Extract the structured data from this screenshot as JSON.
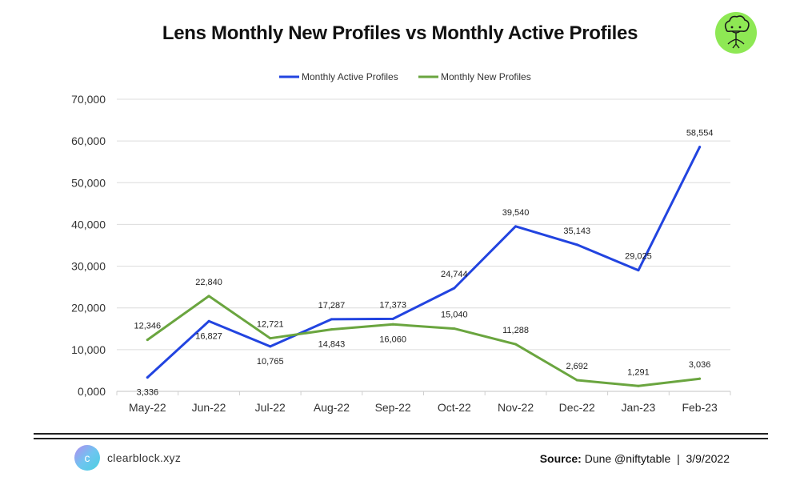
{
  "colors": {
    "active": "#2244e0",
    "new": "#6aa53f",
    "grid": "#dcdcdc",
    "logo_bg": "#8ee854"
  },
  "chart_data": {
    "type": "line",
    "title": "Lens Monthly New Profiles vs Monthly Active Profiles",
    "categories": [
      "May-22",
      "Jun-22",
      "Jul-22",
      "Aug-22",
      "Sep-22",
      "Oct-22",
      "Nov-22",
      "Dec-22",
      "Jan-23",
      "Feb-23"
    ],
    "series": [
      {
        "name": "Monthly Active Profiles",
        "color": "#2244e0",
        "values": [
          3336,
          16827,
          10765,
          17287,
          17373,
          24744,
          39540,
          35143,
          29025,
          58554
        ],
        "labels": [
          "3,336",
          "16,827",
          "10,765",
          "17,287",
          "17,373",
          "24,744",
          "39,540",
          "35,143",
          "29,025",
          "58,554"
        ]
      },
      {
        "name": "Monthly New Profiles",
        "color": "#6aa53f",
        "values": [
          12346,
          22840,
          12721,
          14843,
          16060,
          15040,
          11288,
          2692,
          1291,
          3036
        ],
        "labels": [
          "12,346",
          "22,840",
          "12,721",
          "14,843",
          "16,060",
          "15,040",
          "11,288",
          "2,692",
          "1,291",
          "3,036"
        ]
      }
    ],
    "ylim": [
      0,
      70000
    ],
    "yticks": [
      "0,000",
      "10,000",
      "20,000",
      "30,000",
      "40,000",
      "50,000",
      "60,000",
      "70,000"
    ],
    "grid": true,
    "legend": "top-center"
  },
  "footer": {
    "brand": "clearblock.xyz",
    "logo_letter": "c",
    "source_label": "Source:",
    "source_text": " Dune @niftytable  |  3/9/2022"
  },
  "icons": {
    "top_right": "tree-face-icon",
    "brand": "clearblock-logo-icon"
  }
}
